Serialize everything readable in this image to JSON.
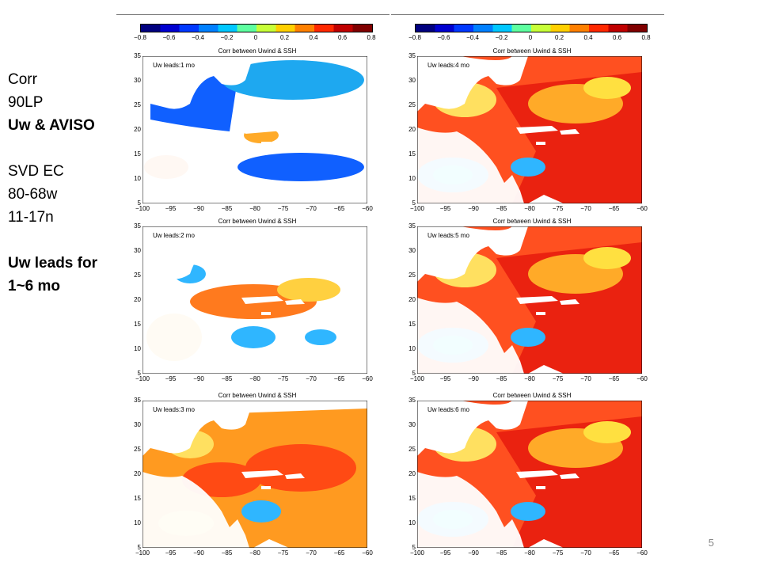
{
  "sidebar": {
    "line1": "Corr",
    "line2": "90LP",
    "line3": "Uw & AVISO",
    "line4": "SVD EC",
    "line5": "80-68w",
    "line6": "11-17n",
    "line7": "Uw leads for",
    "line8": "1~6 mo"
  },
  "colorbar": {
    "ticks": [
      "−0.8",
      "−0.6",
      "−0.4",
      "−0.2",
      "0",
      "0.2",
      "0.4",
      "0.6",
      "0.8"
    ],
    "colors": [
      "#00007f",
      "#0000d0",
      "#0038ff",
      "#0080ff",
      "#00c8ff",
      "#5effa0",
      "#c8ff38",
      "#ffd000",
      "#ff8000",
      "#ff2800",
      "#c00000",
      "#800000"
    ]
  },
  "panel_title": "Corr between Uwind & SSH",
  "y_ticks": [
    "35",
    "30",
    "25",
    "20",
    "15",
    "10",
    "5"
  ],
  "x_ticks": [
    "−100",
    "−95",
    "−90",
    "−85",
    "−80",
    "−75",
    "−70",
    "−65",
    "−60"
  ],
  "panels": [
    {
      "lead": "Uw leads:1 mo",
      "pattern": "negative"
    },
    {
      "lead": "Uw leads:2 mo",
      "pattern": "mixed"
    },
    {
      "lead": "Uw leads:3 mo",
      "pattern": "warm"
    },
    {
      "lead": "Uw leads:4 mo",
      "pattern": "hot"
    },
    {
      "lead": "Uw leads:5 mo",
      "pattern": "hot"
    },
    {
      "lead": "Uw leads:6 mo",
      "pattern": "hot"
    }
  ],
  "page_number": "5"
}
